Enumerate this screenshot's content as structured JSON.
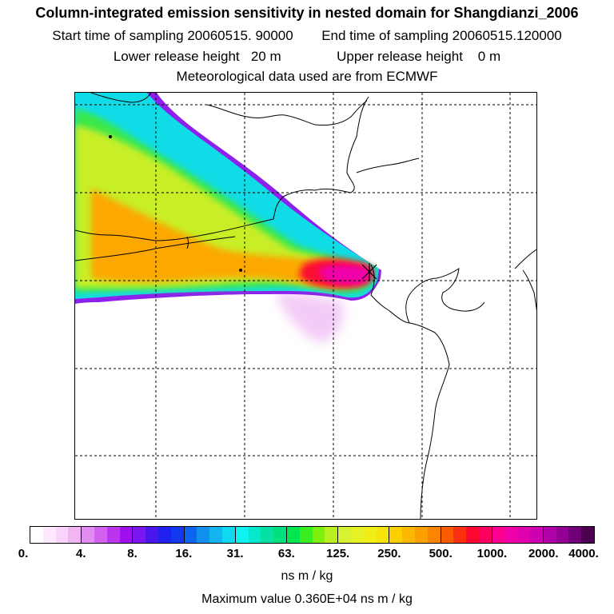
{
  "header": {
    "title": "Column-integrated emission sensitivity in nested domain for Shangdianzi_2006",
    "start_label": "Start time of sampling 20060515. 90000",
    "end_label": "End time of sampling 20060515.120000",
    "lower_label": "Lower release height   20 m",
    "upper_label": "Upper release height    0 m",
    "met_label": "Meteorological data used are from ECMWF"
  },
  "colorbar": {
    "ticks": [
      "0.",
      "4.",
      "8.",
      "16.",
      "31.",
      "63.",
      "125.",
      "250.",
      "500.",
      "1000.",
      "2000.",
      "4000."
    ],
    "segments": [
      [
        "#ffffff",
        "#fde8fd",
        "#f9d3fb",
        "#f1b5f6"
      ],
      [
        "#e08cf0",
        "#d062ee",
        "#bb35ee",
        "#a010ee"
      ],
      [
        "#7a16ee",
        "#4a16ee",
        "#2020f0",
        "#1438f0"
      ],
      [
        "#0c64f0",
        "#1290f0",
        "#14b4f0",
        "#10d8f0"
      ],
      [
        "#0ef2f2",
        "#06e8cc",
        "#05e0a4",
        "#00e07c"
      ],
      [
        "#00e650",
        "#38ee20",
        "#7ef010",
        "#b8f020"
      ],
      [
        "#d6f232",
        "#e6f226",
        "#f0ee16",
        "#f6e40c"
      ],
      [
        "#fcd000",
        "#fcb800",
        "#fca000",
        "#fc8400"
      ],
      [
        "#fc5c00",
        "#fc3010",
        "#fc0830",
        "#fc0060"
      ],
      [
        "#fc0090",
        "#f000a8",
        "#e000b0",
        "#cc00b0"
      ],
      [
        "#b000a8",
        "#920094",
        "#700078",
        "#4c0050"
      ]
    ],
    "units": "ns m / kg",
    "max_value": "Maximum value  0.360E+04 ns m / kg"
  },
  "map": {
    "receptor": "Shangdianzi"
  }
}
